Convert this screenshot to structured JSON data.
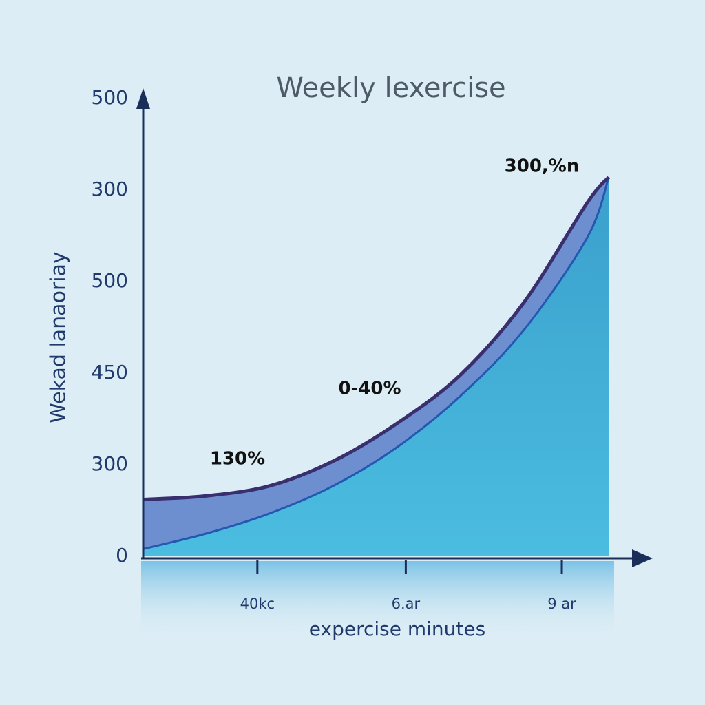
{
  "chart_data": {
    "type": "area",
    "title": "Weekly lexercise",
    "ylabel": "Wekad lanaoriay",
    "xlabel": "expercise minutes",
    "xlim": [
      0,
      4
    ],
    "ylim": [
      0,
      5
    ],
    "xticks": [
      {
        "value": 0.9,
        "label": "40kc"
      },
      {
        "value": 2.07,
        "label": "6.ar"
      },
      {
        "value": 3.3,
        "label": "9 ar"
      }
    ],
    "yticks": [
      {
        "value": 0,
        "label": "0"
      },
      {
        "value": 1,
        "label": "300"
      },
      {
        "value": 2,
        "label": "450"
      },
      {
        "value": 3,
        "label": "500"
      },
      {
        "value": 4,
        "label": "300"
      },
      {
        "value": 5,
        "label": "500"
      }
    ],
    "series": [
      {
        "color": "#3a2f6e",
        "fill": "#6d8fd0",
        "x": [
          0,
          0.5,
          1,
          1.5,
          2,
          2.5,
          3,
          3.5,
          3.67
        ],
        "values": [
          0.62,
          0.66,
          0.77,
          1.04,
          1.45,
          1.98,
          2.77,
          3.86,
          4.14
        ]
      },
      {
        "color": "#2357b0",
        "fill": "#45b2da",
        "x": [
          0,
          0.5,
          1,
          1.5,
          2,
          2.5,
          3,
          3.5,
          3.67
        ],
        "values": [
          0.08,
          0.25,
          0.47,
          0.77,
          1.19,
          1.75,
          2.47,
          3.48,
          4.14
        ]
      }
    ],
    "annotations": [
      "130%",
      "0-40%",
      "300,%n"
    ]
  }
}
